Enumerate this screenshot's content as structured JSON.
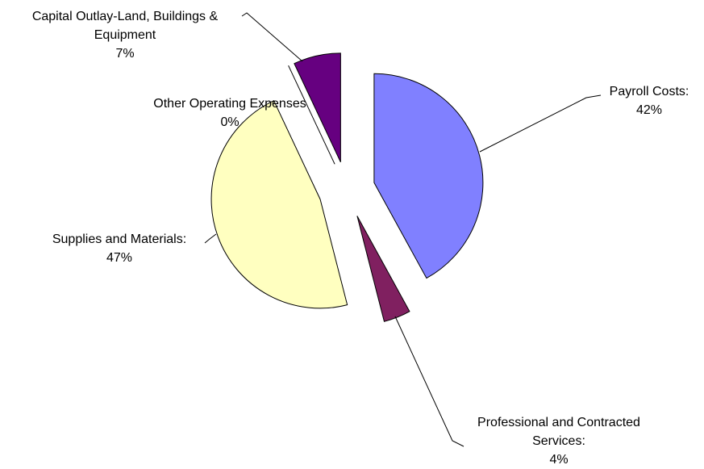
{
  "chart_data": {
    "type": "pie",
    "categories": [
      "Payroll Costs:",
      "Professional and Contracted Services:",
      "Supplies and Materials:",
      "Other Operating Expenses",
      "Capital Outlay-Land, Buildings & Equipment"
    ],
    "values": [
      42,
      4,
      47,
      0,
      7
    ],
    "value_labels": [
      "42%",
      "4%",
      "47%",
      "0%",
      "7%"
    ],
    "colors": [
      "#8080ff",
      "#802060",
      "#ffffc0",
      "#c0c0c0",
      "#660080"
    ]
  }
}
